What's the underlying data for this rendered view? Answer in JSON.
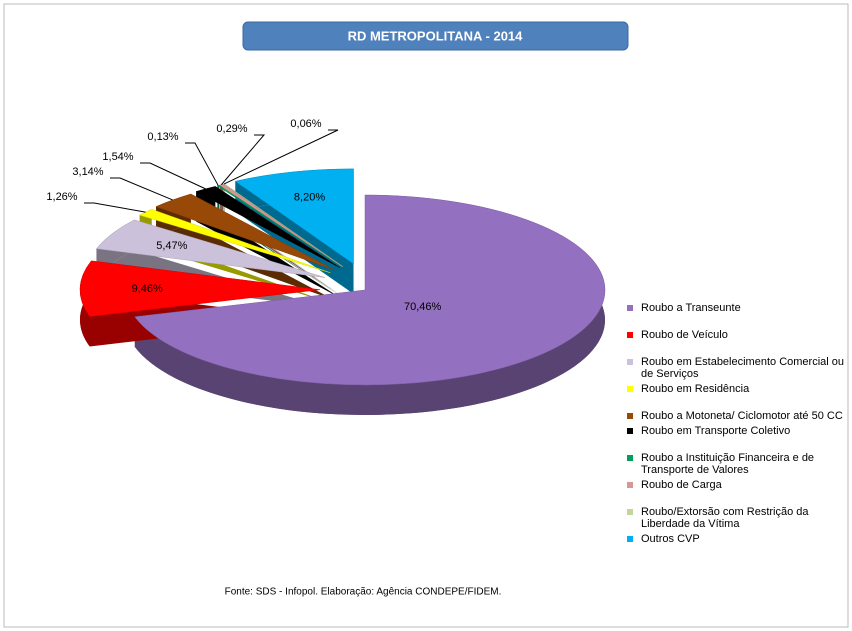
{
  "chart_data": {
    "type": "pie",
    "title": "RD METROPOLITANA - 2014",
    "source": "Fonte: SDS - Infopol.  Elaboração: Agência CONDEPE/FIDEM.",
    "categories": [
      "Roubo a Transeunte",
      "Roubo de Veículo",
      "Roubo em Estabelecimento Comercial ou de Serviços",
      "Roubo em Residência",
      "Roubo a Motoneta/ Ciclomotor até 50 CC",
      "Roubo em Transporte Coletivo",
      "Roubo a Instituição Financeira e de Transporte de Valores",
      "Roubo de Carga",
      "Roubo/Extorsão com Restrição da Liberdade da Vítima",
      "Outros CVP"
    ],
    "values": [
      70.46,
      9.46,
      5.47,
      1.26,
      3.14,
      1.54,
      0.13,
      0.29,
      0.06,
      8.2
    ],
    "value_labels": [
      "70,46%",
      "9,46%",
      "5,47%",
      "1,26%",
      "3,14%",
      "1,54%",
      "0,13%",
      "0,29%",
      "0,06%",
      "8,20%"
    ],
    "colors": [
      "#9470c0",
      "#ff0000",
      "#ccc1da",
      "#ffff00",
      "#984807",
      "#000000",
      "#00a05a",
      "#d99694",
      "#c3d69b",
      "#00b0f0"
    ],
    "legend": "right"
  }
}
